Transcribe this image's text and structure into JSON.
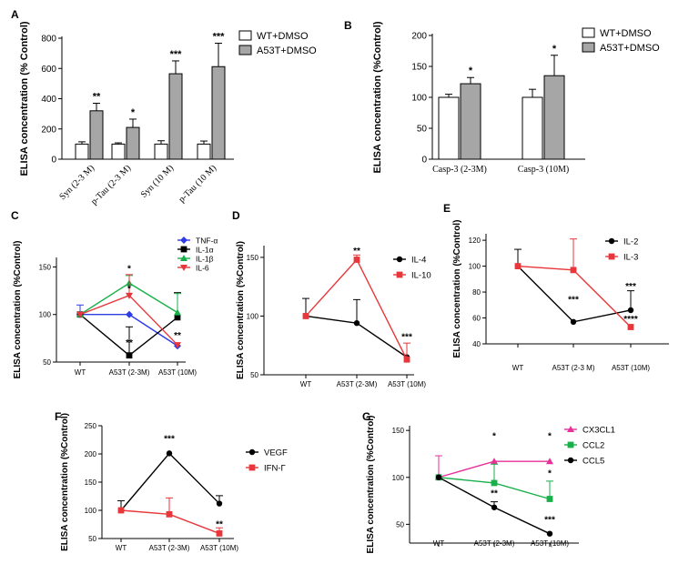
{
  "colors": {
    "wt_bar": "#ffffff",
    "a53t_bar": "#a6a6a6",
    "black": "#000000",
    "red": "#e8363a",
    "blue": "#2e3ce6",
    "green": "#19b04a",
    "magenta": "#e8309a"
  },
  "chart_data": [
    {
      "panel": "A",
      "type": "bar",
      "categories": [
        "Syn (2-3 M)",
        "p-Tau (2-3 M)",
        "Syn (10 M)",
        "p-Tau (10 M)"
      ],
      "ylabel": "ELISA concentration (% Control)",
      "ylim": [
        0,
        800
      ],
      "yticks": [
        0,
        200,
        400,
        600,
        800
      ],
      "series": [
        {
          "name": "WT+DMSO",
          "values": [
            100,
            100,
            100,
            100
          ],
          "errors": [
            15,
            8,
            22,
            20
          ]
        },
        {
          "name": "A53T+DMSO",
          "values": [
            320,
            210,
            565,
            612
          ],
          "errors": [
            50,
            55,
            85,
            155
          ]
        }
      ],
      "significance": [
        "**",
        "*",
        "***",
        "***"
      ],
      "legend": "top-right"
    },
    {
      "panel": "B",
      "type": "bar",
      "categories": [
        "Casp-3 (2-3M)",
        "Casp-3 (10M)"
      ],
      "ylabel": "ELISA concentration (%Control)",
      "ylim": [
        0,
        200
      ],
      "yticks": [
        0,
        50,
        100,
        150,
        200
      ],
      "series": [
        {
          "name": "WT+DMSO",
          "values": [
            100,
            100
          ],
          "errors": [
            5,
            13
          ]
        },
        {
          "name": "A53T+DMSO",
          "values": [
            122,
            135
          ],
          "errors": [
            10,
            33
          ]
        }
      ],
      "significance": [
        "*",
        "*"
      ],
      "legend": "top-right"
    },
    {
      "panel": "C",
      "type": "line",
      "x": [
        "WT",
        "A53T (2-3M)",
        "A53T (10M)"
      ],
      "ylabel": "ELISA concentration (%Control)",
      "ylim": [
        50,
        160
      ],
      "yticks": [
        50,
        100,
        150
      ],
      "series": [
        {
          "name": "TNF-α",
          "values": [
            100,
            100,
            67
          ],
          "color": "blue",
          "marker": "diamond"
        },
        {
          "name": "IL-1α",
          "values": [
            100,
            57,
            97
          ],
          "color": "black",
          "marker": "square"
        },
        {
          "name": "IL-1β",
          "values": [
            100,
            133,
            102
          ],
          "color": "green",
          "marker": "triangle-up"
        },
        {
          "name": "IL-6",
          "values": [
            100,
            120,
            68
          ],
          "color": "red",
          "marker": "triangle-down"
        }
      ],
      "annotations": [
        {
          "x": "A53T (2-3M)",
          "text": "*",
          "y": 145
        },
        {
          "x": "A53T (2-3M)",
          "text": "*",
          "y": 124
        },
        {
          "x": "A53T (2-3M)",
          "text": "**",
          "y": 67
        },
        {
          "x": "A53T (10M)",
          "text": "**",
          "y": 75
        }
      ],
      "legend": "top-right"
    },
    {
      "panel": "D",
      "type": "line",
      "x": [
        "WT",
        "A53T (2-3M)",
        "A53T (10M)"
      ],
      "ylabel": "ELISA concentration (%Control)",
      "ylim": [
        50,
        160
      ],
      "yticks": [
        50,
        100,
        150
      ],
      "series": [
        {
          "name": "IL-4",
          "values": [
            100,
            94,
            65
          ],
          "color": "black",
          "marker": "circle"
        },
        {
          "name": "IL-10",
          "values": [
            100,
            148,
            63
          ],
          "color": "red",
          "marker": "square"
        }
      ],
      "annotations": [
        {
          "x": "A53T (2-3M)",
          "text": "**",
          "y": 153
        },
        {
          "x": "A53T (10M)",
          "text": "***",
          "y": 80
        }
      ],
      "legend": "top-right"
    },
    {
      "panel": "E",
      "type": "line",
      "x": [
        "WT",
        "A53T  (2-3  M)",
        "A53T  (10M)"
      ],
      "ylabel": "ELISA concentration (%Control)",
      "ylim": [
        40,
        125
      ],
      "yticks": [
        40,
        60,
        80,
        100,
        120
      ],
      "series": [
        {
          "name": "IL-2",
          "values": [
            100,
            57,
            66
          ],
          "color": "black",
          "marker": "circle"
        },
        {
          "name": "IL-3",
          "values": [
            100,
            97,
            53
          ],
          "color": "red",
          "marker": "square"
        }
      ],
      "annotations": [
        {
          "x": "A53T  (2-3  M)",
          "text": "***",
          "y": 72
        },
        {
          "x": "A53T  (10M)",
          "text": "***",
          "y": 82
        },
        {
          "x": "A53T  (10M)",
          "text": "****",
          "y": 57
        }
      ],
      "legend": "top-right"
    },
    {
      "panel": "F",
      "type": "line",
      "x": [
        "WT",
        "A53T (2-3M)",
        "A53T (10M)"
      ],
      "ylabel": "ELISA concentration (%Control)",
      "ylim": [
        50,
        250
      ],
      "yticks": [
        50,
        100,
        150,
        200,
        250
      ],
      "series": [
        {
          "name": "VEGF",
          "values": [
            100,
            201,
            112
          ],
          "color": "black",
          "marker": "circle"
        },
        {
          "name": "IFN-Γ",
          "values": [
            100,
            93,
            59
          ],
          "color": "red",
          "marker": "square"
        }
      ],
      "annotations": [
        {
          "x": "A53T (2-3M)",
          "text": "***",
          "y": 222
        },
        {
          "x": "A53T (10M)",
          "text": "**",
          "y": 70
        }
      ],
      "legend": "right"
    },
    {
      "panel": "G",
      "type": "line",
      "x": [
        "WT",
        "A53T (2-3M)",
        "A53T (10M)"
      ],
      "ylabel": "ELISA concentration (%Control)",
      "ylim": [
        30,
        155
      ],
      "yticks": [
        50,
        100,
        150
      ],
      "series": [
        {
          "name": "CX3CL1",
          "values": [
            100,
            117,
            117
          ],
          "color": "magenta",
          "marker": "triangle-up"
        },
        {
          "name": "CCL2",
          "values": [
            100,
            94,
            77
          ],
          "color": "green",
          "marker": "square"
        },
        {
          "name": "CCL5",
          "values": [
            100,
            68,
            40
          ],
          "color": "black",
          "marker": "circle"
        }
      ],
      "annotations": [
        {
          "x": "A53T (2-3M)",
          "text": "*",
          "y": 141
        },
        {
          "x": "A53T (10M)",
          "text": "*",
          "y": 141
        },
        {
          "x": "A53T (10M)",
          "text": "*",
          "y": 101
        },
        {
          "x": "A53T (2-3M)",
          "text": "**",
          "y": 80
        },
        {
          "x": "A53T (10M)",
          "text": "***",
          "y": 52
        }
      ],
      "legend": "top-right"
    }
  ]
}
